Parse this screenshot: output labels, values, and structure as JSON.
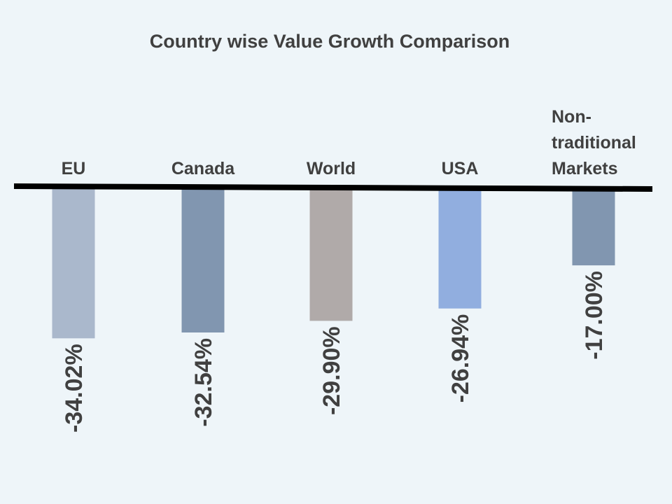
{
  "chart_data": {
    "type": "bar",
    "title": "Country wise Value Growth Comparison",
    "categories": [
      "EU",
      "Canada",
      "World",
      "USA",
      "Non-traditional Markets"
    ],
    "category_lines": [
      [
        "EU"
      ],
      [
        "Canada"
      ],
      [
        "World"
      ],
      [
        "USA"
      ],
      [
        "Non-",
        "traditional",
        "Markets"
      ]
    ],
    "values": [
      -34.02,
      -32.54,
      -29.9,
      -26.94,
      -17.0
    ],
    "data_labels": [
      "-34.02%",
      "-32.54%",
      "-29.90%",
      "-26.94%",
      "-17.00%"
    ],
    "bar_colors": [
      "#aab8cc",
      "#8196b0",
      "#b0aaa9",
      "#91aedf",
      "#8196b0"
    ],
    "ylim": [
      -40,
      0
    ],
    "xlabel": "",
    "ylabel": "",
    "grid": false,
    "legend": "none"
  }
}
